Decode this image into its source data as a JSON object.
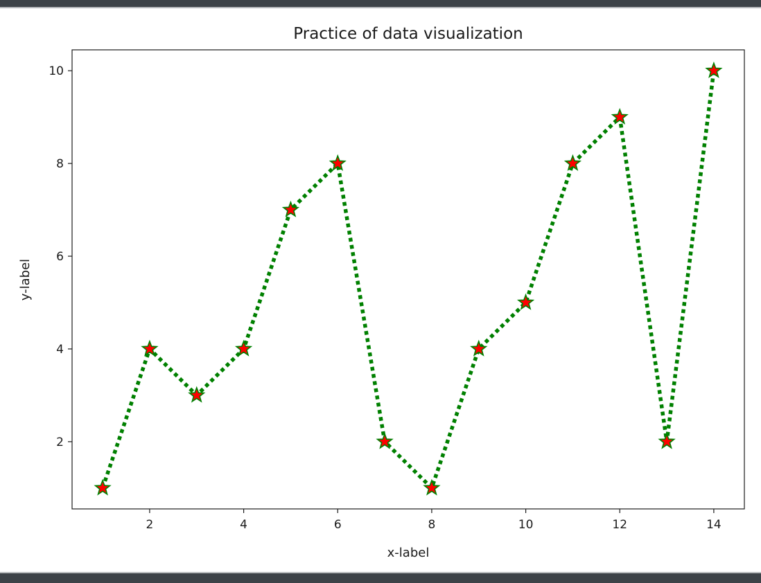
{
  "chart_data": {
    "type": "line",
    "title": "Practice of data visualization",
    "xlabel": "x-label",
    "ylabel": "y-label",
    "x": [
      1,
      2,
      3,
      4,
      5,
      6,
      7,
      8,
      9,
      10,
      11,
      12,
      13,
      14
    ],
    "series": [
      {
        "values": [
          1,
          4,
          3,
          4,
          7,
          8,
          2,
          1,
          4,
          5,
          8,
          9,
          2,
          10
        ],
        "line_color": "#008000",
        "line_style": "dotted",
        "marker": "star",
        "marker_face_color": "#ff0000",
        "marker_edge_color": "#008000"
      }
    ],
    "xlim": [
      0.35,
      14.65
    ],
    "ylim": [
      0.55,
      10.45
    ],
    "xticks": [
      2,
      4,
      6,
      8,
      10,
      12,
      14
    ],
    "yticks": [
      2,
      4,
      6,
      8,
      10
    ],
    "grid": false,
    "legend": false
  }
}
